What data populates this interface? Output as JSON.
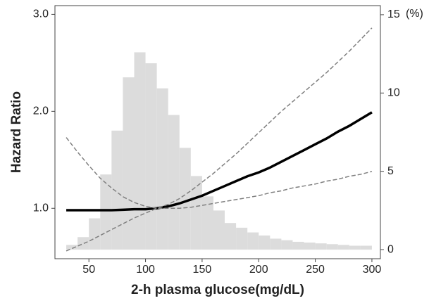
{
  "chart_data": {
    "type": "line",
    "xlabel": "2-h plasma glucose(mg/dL)",
    "ylabel": "Hazard Ratio",
    "y2label": "(%)",
    "x": [
      30,
      40,
      50,
      60,
      70,
      80,
      90,
      100,
      110,
      120,
      130,
      140,
      150,
      160,
      170,
      180,
      190,
      200,
      210,
      220,
      230,
      240,
      250,
      260,
      270,
      280,
      290,
      300
    ],
    "series": [
      {
        "color": "#000000",
        "dash": false,
        "width": 3.5,
        "values": [
          0.98,
          0.98,
          0.98,
          0.98,
          0.98,
          0.985,
          0.99,
          0.99,
          1.0,
          1.02,
          1.05,
          1.09,
          1.13,
          1.18,
          1.23,
          1.28,
          1.33,
          1.37,
          1.42,
          1.48,
          1.54,
          1.6,
          1.66,
          1.72,
          1.79,
          1.85,
          1.92,
          1.99
        ]
      },
      {
        "color": "#808080",
        "dash": true,
        "width": 1.5,
        "values": [
          1.73,
          1.58,
          1.44,
          1.31,
          1.21,
          1.12,
          1.06,
          1.02,
          1.0,
          1.04,
          1.1,
          1.18,
          1.27,
          1.36,
          1.46,
          1.56,
          1.67,
          1.78,
          1.89,
          2.0,
          2.1,
          2.2,
          2.3,
          2.4,
          2.51,
          2.62,
          2.74,
          2.86
        ]
      },
      {
        "color": "#808080",
        "dash": true,
        "width": 1.5,
        "values": [
          0.56,
          0.61,
          0.66,
          0.72,
          0.78,
          0.84,
          0.9,
          0.95,
          1.0,
          1.0,
          1.0,
          1.01,
          1.03,
          1.05,
          1.07,
          1.09,
          1.11,
          1.13,
          1.16,
          1.18,
          1.21,
          1.23,
          1.25,
          1.28,
          1.3,
          1.33,
          1.35,
          1.38
        ]
      }
    ],
    "histogram": {
      "axis": "y2",
      "color": "#dcdcdc",
      "bins": [
        30,
        40,
        50,
        60,
        70,
        80,
        90,
        100,
        110,
        120,
        130,
        140,
        150,
        160,
        170,
        180,
        190,
        200,
        210,
        220,
        230,
        240,
        250,
        260,
        270,
        280,
        290,
        300
      ],
      "values": [
        0.3,
        0.8,
        2.0,
        4.8,
        7.6,
        11.0,
        12.6,
        11.9,
        10.3,
        8.6,
        6.5,
        4.7,
        3.4,
        2.5,
        1.7,
        1.4,
        1.1,
        0.9,
        0.7,
        0.6,
        0.5,
        0.45,
        0.4,
        0.35,
        0.3,
        0.25,
        0.25
      ]
    },
    "xlim": [
      20,
      307.5
    ],
    "xticks": [
      50,
      100,
      150,
      200,
      250,
      300
    ],
    "ylim": [
      0.48,
      3.09
    ],
    "yticks": [
      {
        "value": 1,
        "label": "1.0"
      },
      {
        "value": 2,
        "label": "2.0"
      },
      {
        "value": 3,
        "label": "3.0"
      }
    ],
    "y2lim": [
      -0.58,
      15.58
    ],
    "y2ticks": [
      0,
      5,
      10,
      15
    ]
  }
}
